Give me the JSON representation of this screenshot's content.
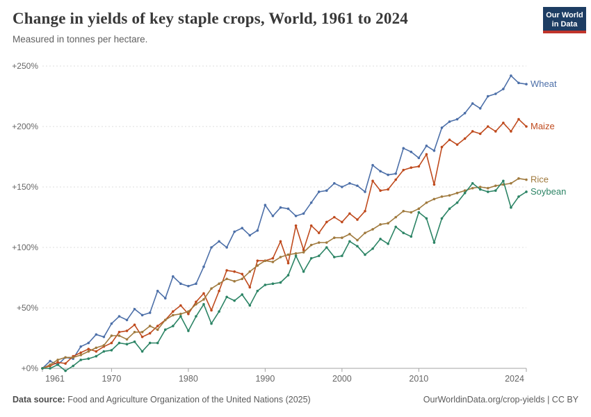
{
  "header": {
    "title": "Change in yields of key staple crops, World, 1961 to 2024",
    "subtitle": "Measured in tonnes per hectare.",
    "logo": {
      "line1": "Our World",
      "line2": "in Data",
      "bg_color": "#1d3d63",
      "accent_color": "#c0342b"
    }
  },
  "footer": {
    "source_label": "Data source:",
    "source_text": " Food and Agriculture Organization of the United Nations (2025)",
    "credit": "OurWorldinData.org/crop-yields | CC BY"
  },
  "chart_data": {
    "type": "line",
    "title": "Change in yields of key staple crops, World, 1961 to 2024",
    "subtitle": "Measured in tonnes per hectare.",
    "xlabel": "",
    "ylabel": "",
    "xlim": [
      1961,
      2024
    ],
    "ylim": [
      0,
      250
    ],
    "grid": "horizontal-dashed",
    "legend_position": "end-of-line-labels",
    "x_ticks": [
      1961,
      1970,
      1980,
      1990,
      2000,
      2010,
      2024
    ],
    "x_tick_labels": [
      "1961",
      "1970",
      "1980",
      "1990",
      "2000",
      "2010",
      "2024"
    ],
    "y_ticks": [
      0,
      50,
      100,
      150,
      200,
      250
    ],
    "y_tick_labels": [
      "+0%",
      "+50%",
      "+100%",
      "+150%",
      "+200%",
      "+250%"
    ],
    "x": [
      1961,
      1962,
      1963,
      1964,
      1965,
      1966,
      1967,
      1968,
      1969,
      1970,
      1971,
      1972,
      1973,
      1974,
      1975,
      1976,
      1977,
      1978,
      1979,
      1980,
      1981,
      1982,
      1983,
      1984,
      1985,
      1986,
      1987,
      1988,
      1989,
      1990,
      1991,
      1992,
      1993,
      1994,
      1995,
      1996,
      1997,
      1998,
      1999,
      2000,
      2001,
      2002,
      2003,
      2004,
      2005,
      2006,
      2007,
      2008,
      2009,
      2010,
      2011,
      2012,
      2013,
      2014,
      2015,
      2016,
      2017,
      2018,
      2019,
      2020,
      2021,
      2022,
      2023,
      2024
    ],
    "unit": "% change vs 1961",
    "series": [
      {
        "name": "Wheat",
        "color": "#4c6fa8",
        "values": [
          0,
          6,
          3,
          9,
          8,
          18,
          21,
          28,
          26,
          37,
          43,
          40,
          49,
          44,
          46,
          64,
          58,
          76,
          70,
          68,
          70,
          84,
          100,
          105,
          100,
          113,
          116,
          110,
          114,
          135,
          126,
          133,
          132,
          126,
          128,
          137,
          146,
          147,
          153,
          150,
          153,
          151,
          146,
          168,
          163,
          160,
          161,
          182,
          179,
          174,
          184,
          180,
          199,
          204,
          206,
          211,
          219,
          215,
          225,
          227,
          231,
          242,
          236,
          235
        ]
      },
      {
        "name": "Maize",
        "color": "#bf4a1d",
        "values": [
          0,
          2,
          5,
          4,
          10,
          13,
          16,
          14,
          18,
          21,
          30,
          31,
          36,
          26,
          29,
          35,
          40,
          47,
          52,
          45,
          55,
          62,
          48,
          64,
          81,
          80,
          78,
          67,
          89,
          89,
          91,
          105,
          87,
          118,
          98,
          118,
          112,
          121,
          125,
          121,
          128,
          123,
          130,
          155,
          147,
          148,
          156,
          164,
          166,
          167,
          177,
          152,
          183,
          189,
          185,
          190,
          196,
          194,
          200,
          196,
          203,
          196,
          206,
          200
        ]
      },
      {
        "name": "Rice",
        "color": "#a07a3e",
        "values": [
          0,
          3,
          7,
          9,
          9,
          11,
          14,
          17,
          19,
          27,
          27,
          24,
          30,
          30,
          35,
          32,
          40,
          44,
          45,
          47,
          53,
          57,
          66,
          70,
          74,
          72,
          74,
          80,
          85,
          89,
          88,
          92,
          94,
          95,
          96,
          102,
          104,
          104,
          108,
          108,
          111,
          106,
          112,
          115,
          119,
          120,
          125,
          130,
          129,
          132,
          137,
          140,
          142,
          143,
          145,
          147,
          149,
          150,
          149,
          151,
          152,
          153,
          157,
          156
        ]
      },
      {
        "name": "Soybean",
        "color": "#2c8465",
        "values": [
          0,
          0,
          3,
          -2,
          2,
          7,
          8,
          10,
          14,
          15,
          21,
          20,
          22,
          14,
          21,
          21,
          32,
          35,
          43,
          31,
          43,
          53,
          37,
          47,
          59,
          56,
          61,
          52,
          64,
          69,
          70,
          71,
          77,
          93,
          80,
          91,
          93,
          100,
          92,
          93,
          105,
          101,
          94,
          99,
          107,
          103,
          117,
          112,
          109,
          129,
          124,
          104,
          124,
          132,
          137,
          145,
          153,
          148,
          146,
          147,
          155,
          133,
          142,
          146
        ]
      }
    ]
  }
}
